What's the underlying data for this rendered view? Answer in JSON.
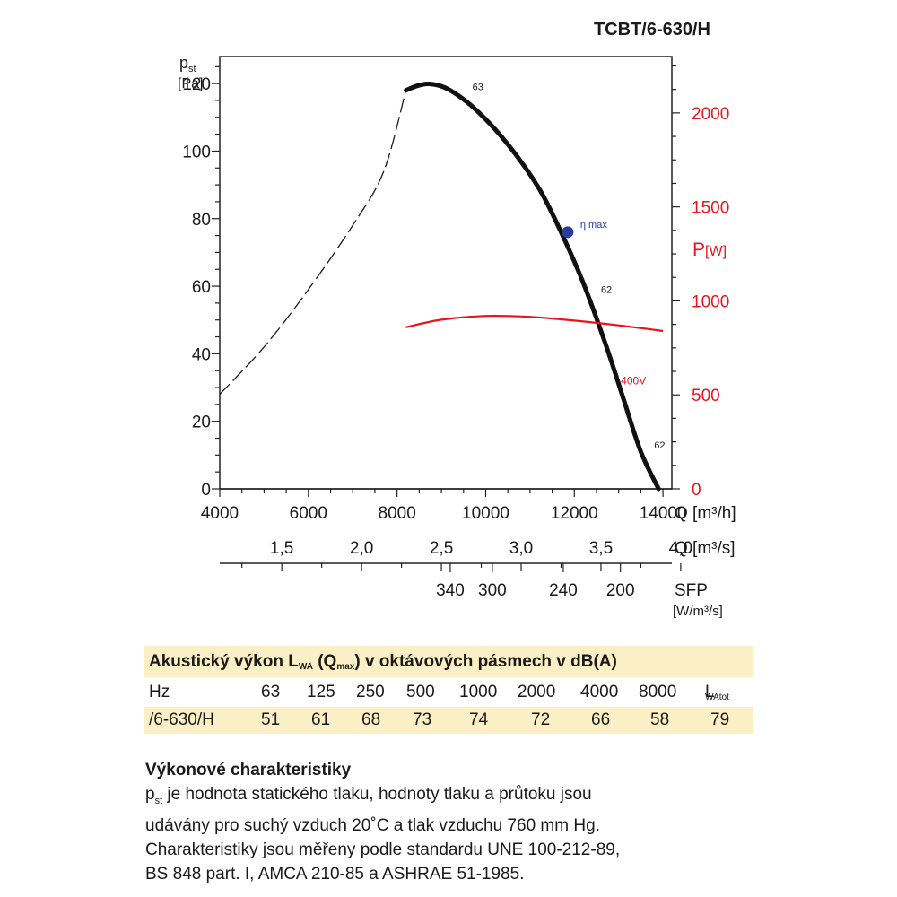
{
  "chart_data": {
    "type": "line",
    "title": "TCBT/6-630/H",
    "y_left": {
      "label": "p",
      "label_sub": "st",
      "unit": "[Pa]",
      "range": [
        0,
        128
      ],
      "ticks": [
        0,
        20,
        40,
        60,
        80,
        100,
        120
      ],
      "tick_labels": [
        "0",
        "20",
        "40",
        "60",
        "80",
        "100",
        "120"
      ]
    },
    "y_right": {
      "label_p": "P",
      "unit": "[W]",
      "range": [
        0,
        2300
      ],
      "ticks": [
        0,
        500,
        1000,
        1500,
        2000
      ],
      "tick_labels": [
        "0",
        "500",
        "1000",
        "1500",
        "2000"
      ],
      "color": "#e8141c"
    },
    "x_main": {
      "label": "Q [m³/h]",
      "range": [
        4000,
        14200
      ],
      "ticks": [
        4000,
        6000,
        8000,
        10000,
        12000,
        14000
      ],
      "tick_labels": [
        "4000",
        "6000",
        "8000",
        "10000",
        "12000",
        "14000"
      ]
    },
    "x_secondary": {
      "label": "Q [m³/s]",
      "ticks": [
        1.5,
        2.0,
        2.5,
        3.0,
        3.5,
        4.0
      ],
      "tick_labels": [
        "1,5",
        "2,0",
        "2,5",
        "3,0",
        "3,5",
        "4,0"
      ]
    },
    "x_sfp": {
      "label": "SFP",
      "unit": "[W/m³/s]",
      "tick_labels": [
        "340",
        "300",
        "240",
        "200"
      ],
      "at_q_m3h": [
        9200,
        10150,
        11750,
        13040
      ]
    },
    "series": [
      {
        "name": "",
        "style": "dashed",
        "color": "#1a1a1a",
        "x": [
          4000,
          5000,
          6000,
          7000,
          7700,
          8200
        ],
        "y": [
          28,
          42,
          59,
          78,
          94,
          118
        ]
      },
      {
        "name": "",
        "style": "solid",
        "color": "#111111",
        "x": [
          8200,
          8500,
          8800,
          9200,
          9800,
          10500,
          11200,
          11700,
          12200,
          12700,
          13100,
          13500,
          13900
        ],
        "y": [
          118,
          119.5,
          119.8,
          118,
          112,
          102,
          89,
          76,
          61,
          43,
          27,
          11,
          0
        ]
      },
      {
        "name": "400V",
        "style": "solid",
        "color": "#e8141c",
        "axis": "right",
        "x": [
          8200,
          9000,
          10000,
          11000,
          12000,
          13000,
          14000
        ],
        "y": [
          860,
          900,
          920,
          915,
          895,
          870,
          840
        ]
      }
    ],
    "curve_labels": [
      {
        "text": "63",
        "x": 9700,
        "y": 118
      },
      {
        "text": "62",
        "x": 12600,
        "y": 58
      },
      {
        "text": "62",
        "x": 13800,
        "y": 12
      },
      {
        "text": "400V",
        "x": 13050,
        "y": 31
      }
    ],
    "marker": {
      "label": "η max",
      "x": 11850,
      "y": 76,
      "color": "#2a3c9e"
    }
  },
  "table": {
    "title_a": "Akustický výkon L",
    "title_sub1": "WA",
    "title_b": " (Q",
    "title_sub2": "max",
    "title_c": ") v oktávových pásmech v dB(A)",
    "header_label": "Hz",
    "freqs": [
      "63",
      "125",
      "250",
      "500",
      "1000",
      "2000",
      "4000",
      "8000"
    ],
    "lw_main": "L",
    "lw_sub": "WAtot",
    "row_label": "/6-630/H",
    "values": [
      "51",
      "61",
      "68",
      "73",
      "74",
      "72",
      "66",
      "58",
      "79"
    ]
  },
  "description": {
    "heading": "Výkonové charakteristiky",
    "p": "p",
    "p_sub": "st",
    "line1_rest": " je hodnota statického tlaku, hodnoty tlaku a průtoku jsou",
    "line2": "udávány pro suchý vzduch 20˚C a tlak vzduchu 760 mm Hg.",
    "line3": "Charakteristiky jsou měřeny podle standardu UNE 100-212-89,",
    "line4": "BS 848 part. I, AMCA 210-85 a ASHRAE 51-1985."
  }
}
